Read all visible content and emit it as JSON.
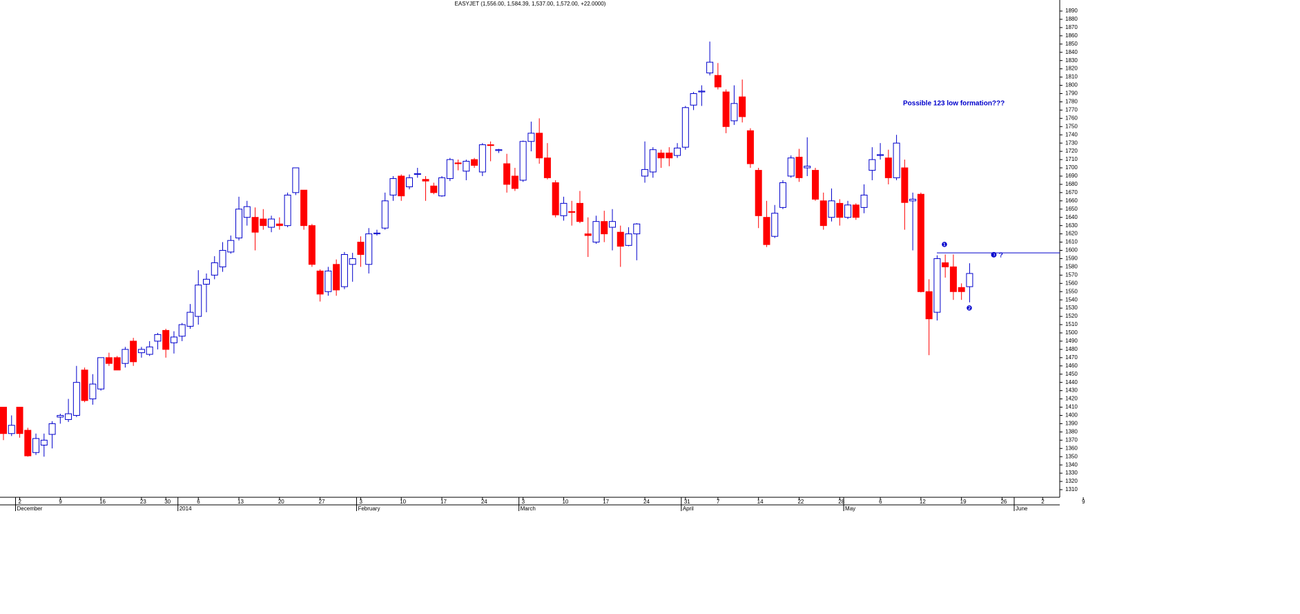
{
  "chart_data": {
    "type": "candlestick",
    "title": "EASYJET (1,556.00, 1,584.39, 1,537.00, 1,572.00, +22.0000)",
    "categories": [
      null,
      null,
      "2",
      null,
      null,
      null,
      null,
      "9",
      null,
      null,
      null,
      null,
      "16",
      null,
      null,
      null,
      null,
      "23",
      null,
      null,
      "30",
      null,
      null,
      null,
      "6",
      null,
      null,
      null,
      null,
      "13",
      null,
      null,
      null,
      null,
      "20",
      null,
      null,
      null,
      null,
      "27",
      null,
      null,
      null,
      null,
      "3",
      null,
      null,
      null,
      null,
      "10",
      null,
      null,
      null,
      null,
      "17",
      null,
      null,
      null,
      null,
      "24",
      null,
      null,
      null,
      null,
      "3",
      null,
      null,
      null,
      null,
      "10",
      null,
      null,
      null,
      null,
      "17",
      null,
      null,
      null,
      null,
      "24",
      null,
      null,
      null,
      null,
      "31",
      null,
      null,
      null,
      "7",
      null,
      null,
      null,
      null,
      "14",
      null,
      null,
      null,
      null,
      "22",
      null,
      null,
      null,
      null,
      "28",
      null,
      null,
      null,
      null,
      "6",
      null,
      null,
      null,
      null,
      "12",
      null,
      null,
      null,
      null,
      "19",
      null,
      null,
      null,
      null,
      "26",
      null,
      null,
      null,
      null,
      "2",
      null,
      null,
      null,
      null,
      "9"
    ],
    "month_labels": [
      null,
      null,
      "December",
      null,
      null,
      null,
      null,
      null,
      null,
      null,
      null,
      null,
      null,
      null,
      null,
      null,
      null,
      null,
      null,
      null,
      null,
      null,
      "2014",
      null,
      null,
      null,
      null,
      null,
      null,
      null,
      null,
      null,
      null,
      null,
      null,
      null,
      null,
      null,
      null,
      null,
      null,
      null,
      null,
      null,
      "February",
      null,
      null,
      null,
      null,
      null,
      null,
      null,
      null,
      null,
      null,
      null,
      null,
      null,
      null,
      null,
      null,
      null,
      null,
      null,
      "March",
      null,
      null,
      null,
      null,
      null,
      null,
      null,
      null,
      null,
      null,
      null,
      null,
      null,
      null,
      null,
      null,
      null,
      null,
      null,
      "April",
      null,
      null,
      null,
      null,
      null,
      null,
      null,
      null,
      null,
      null,
      null,
      null,
      null,
      null,
      null,
      null,
      null,
      null,
      null,
      "May",
      null,
      null,
      null,
      null,
      null,
      null,
      null,
      null,
      null,
      null,
      null,
      null,
      null,
      null,
      null,
      null,
      null,
      null,
      null,
      null,
      "June",
      null,
      null,
      null,
      null,
      null,
      null,
      null,
      null
    ],
    "open": [
      1410,
      1378,
      1410,
      1382,
      1355,
      1364,
      1377,
      1398,
      1395,
      1400,
      1455,
      1420,
      1432,
      1470,
      1470,
      1463,
      1490,
      1476,
      1474,
      1490,
      1503,
      1488,
      1496,
      1508,
      1520,
      1559,
      1570,
      1580,
      1598,
      1615,
      1640,
      1640,
      1638,
      1628,
      1632,
      1630,
      1670,
      1673,
      1630,
      1575,
      1550,
      1583,
      1556,
      1583,
      1610,
      1583,
      1620,
      1627,
      1667,
      1690,
      1677,
      1692,
      1686,
      1678,
      1666,
      1687,
      1706,
      1696,
      1710,
      1695,
      1728,
      1721,
      1705,
      1690,
      1685,
      1732,
      1742,
      1712,
      1682,
      1642,
      1647,
      1657,
      1620,
      1610,
      1635,
      1628,
      1622,
      1606,
      1620,
      1690,
      1695,
      1718,
      1718,
      1715,
      1725,
      1776,
      1792,
      1815,
      1812,
      1792,
      1757,
      1786,
      1745,
      1697,
      1640,
      1617,
      1652,
      1690,
      1713,
      1700,
      1697,
      1660,
      1640,
      1657,
      1640,
      1655,
      1652,
      1697,
      1715,
      1712,
      1688,
      1700,
      1660,
      1668,
      1550,
      1525,
      1585,
      1580,
      1555,
      1556,
      null,
      null,
      null,
      null,
      null,
      null,
      null,
      null,
      null,
      null,
      null,
      null,
      null,
      null
    ],
    "high": [
      1410,
      1400,
      1410,
      1385,
      1378,
      1378,
      1393,
      1402,
      1420,
      1460,
      1458,
      1450,
      1470,
      1476,
      1472,
      1483,
      1494,
      1483,
      1490,
      1500,
      1505,
      1502,
      1512,
      1535,
      1576,
      1572,
      1593,
      1610,
      1618,
      1665,
      1660,
      1652,
      1650,
      1642,
      1640,
      1670,
      1700,
      1673,
      1632,
      1577,
      1580,
      1589,
      1598,
      1597,
      1617,
      1627,
      1625,
      1670,
      1690,
      1692,
      1692,
      1700,
      1690,
      1682,
      1690,
      1712,
      1710,
      1710,
      1712,
      1730,
      1732,
      1723,
      1717,
      1700,
      1733,
      1756,
      1760,
      1730,
      1685,
      1665,
      1660,
      1672,
      1640,
      1642,
      1648,
      1650,
      1630,
      1628,
      1633,
      1732,
      1725,
      1722,
      1725,
      1730,
      1775,
      1792,
      1800,
      1853,
      1827,
      1795,
      1800,
      1807,
      1748,
      1700,
      1660,
      1655,
      1685,
      1715,
      1723,
      1737,
      1700,
      1670,
      1675,
      1662,
      1660,
      1657,
      1680,
      1725,
      1730,
      1722,
      1740,
      1710,
      1670,
      1670,
      1565,
      1594,
      1595,
      1595,
      1560,
      1584.39,
      null,
      null,
      null,
      null,
      null,
      null,
      null,
      null,
      null,
      null,
      null,
      null,
      null,
      null
    ],
    "low": [
      1370,
      1375,
      1373,
      1350,
      1352,
      1350,
      1360,
      1390,
      1392,
      1398,
      1416,
      1413,
      1430,
      1460,
      1455,
      1458,
      1460,
      1470,
      1472,
      1480,
      1470,
      1475,
      1490,
      1505,
      1510,
      1525,
      1565,
      1574,
      1596,
      1612,
      1630,
      1600,
      1625,
      1622,
      1625,
      1628,
      1667,
      1625,
      1580,
      1538,
      1545,
      1545,
      1553,
      1562,
      1580,
      1572,
      1618,
      1625,
      1660,
      1660,
      1674,
      1688,
      1660,
      1668,
      1665,
      1684,
      1697,
      1685,
      1700,
      1690,
      1708,
      1718,
      1670,
      1672,
      1683,
      1720,
      1705,
      1686,
      1640,
      1636,
      1630,
      1633,
      1592,
      1608,
      1610,
      1600,
      1580,
      1605,
      1588,
      1682,
      1688,
      1700,
      1702,
      1712,
      1722,
      1770,
      1775,
      1812,
      1795,
      1742,
      1752,
      1755,
      1700,
      1627,
      1604,
      1615,
      1650,
      1688,
      1683,
      1690,
      1660,
      1625,
      1635,
      1630,
      1638,
      1637,
      1645,
      1685,
      1710,
      1680,
      1685,
      1625,
      1600,
      1549,
      1473,
      1515,
      1567,
      1540,
      1540,
      1537,
      null,
      null,
      null,
      null,
      null,
      null,
      null,
      null,
      null,
      null,
      null,
      null,
      null,
      null
    ],
    "close": [
      1378,
      1388,
      1378,
      1351,
      1372,
      1370,
      1390,
      1400,
      1402,
      1440,
      1418,
      1438,
      1470,
      1463,
      1455,
      1480,
      1465,
      1480,
      1483,
      1498,
      1480,
      1495,
      1510,
      1525,
      1558,
      1565,
      1585,
      1600,
      1612,
      1650,
      1653,
      1622,
      1630,
      1638,
      1630,
      1667,
      1700,
      1630,
      1583,
      1547,
      1575,
      1552,
      1595,
      1590,
      1595,
      1620,
      1621,
      1660,
      1687,
      1666,
      1688,
      1693,
      1684,
      1670,
      1688,
      1710,
      1705,
      1708,
      1703,
      1728,
      1727,
      1722,
      1680,
      1675,
      1732,
      1742,
      1712,
      1688,
      1643,
      1657,
      1646,
      1635,
      1618,
      1635,
      1620,
      1635,
      1605,
      1620,
      1632,
      1698,
      1722,
      1712,
      1712,
      1724,
      1773,
      1790,
      1793,
      1828,
      1798,
      1750,
      1778,
      1762,
      1705,
      1642,
      1607,
      1645,
      1682,
      1712,
      1688,
      1702,
      1662,
      1630,
      1660,
      1640,
      1655,
      1640,
      1667,
      1710,
      1716,
      1688,
      1730,
      1658,
      1662,
      1550,
      1517,
      1590,
      1580,
      1550,
      1550,
      1572,
      null,
      null,
      null,
      null,
      null,
      null,
      null,
      null,
      null,
      null,
      null,
      null,
      null,
      null
    ],
    "up_color": "#0000cc",
    "down_color": "#ff0000",
    "ylim": [
      1300,
      1900
    ],
    "yticks": [
      1310,
      1320,
      1330,
      1340,
      1350,
      1360,
      1370,
      1380,
      1390,
      1400,
      1410,
      1420,
      1430,
      1440,
      1450,
      1460,
      1470,
      1480,
      1490,
      1500,
      1510,
      1520,
      1530,
      1540,
      1550,
      1560,
      1570,
      1580,
      1590,
      1600,
      1610,
      1620,
      1630,
      1640,
      1650,
      1660,
      1670,
      1680,
      1690,
      1700,
      1710,
      1720,
      1730,
      1740,
      1750,
      1760,
      1770,
      1780,
      1790,
      1800,
      1810,
      1820,
      1830,
      1840,
      1850,
      1860,
      1870,
      1880,
      1890
    ],
    "resistance": 1597,
    "annotations": [
      "Possible 123 low formation???",
      "❶",
      "❷",
      "❸ ?"
    ]
  }
}
